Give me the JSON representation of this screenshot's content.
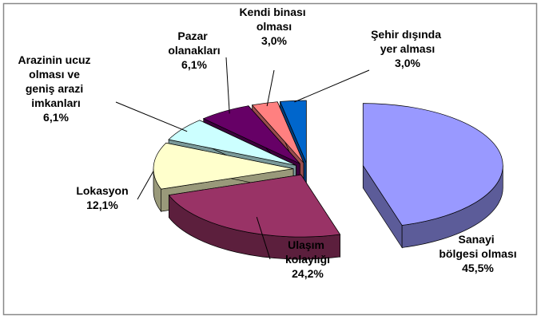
{
  "chart_data": {
    "type": "pie",
    "categories": [
      "Sanayi bölgesi olması",
      "Ulaşım kolaylığı",
      "Lokasyon",
      "Arazinin ucuz olması ve geniş arazi imkanları",
      "Pazar olanakları",
      "Kendi binası olması",
      "Şehir dışında yer alması"
    ],
    "values": [
      45.5,
      24.2,
      12.1,
      6.1,
      6.1,
      3.0,
      3.0
    ],
    "value_labels": [
      "45,5%",
      "24,2%",
      "12,1%",
      "6,1%",
      "6,1%",
      "3,0%",
      "3,0%"
    ],
    "colors": [
      "#9999ff",
      "#993366",
      "#ffffcc",
      "#ccffff",
      "#660066",
      "#ff8080",
      "#0066cc"
    ]
  }
}
